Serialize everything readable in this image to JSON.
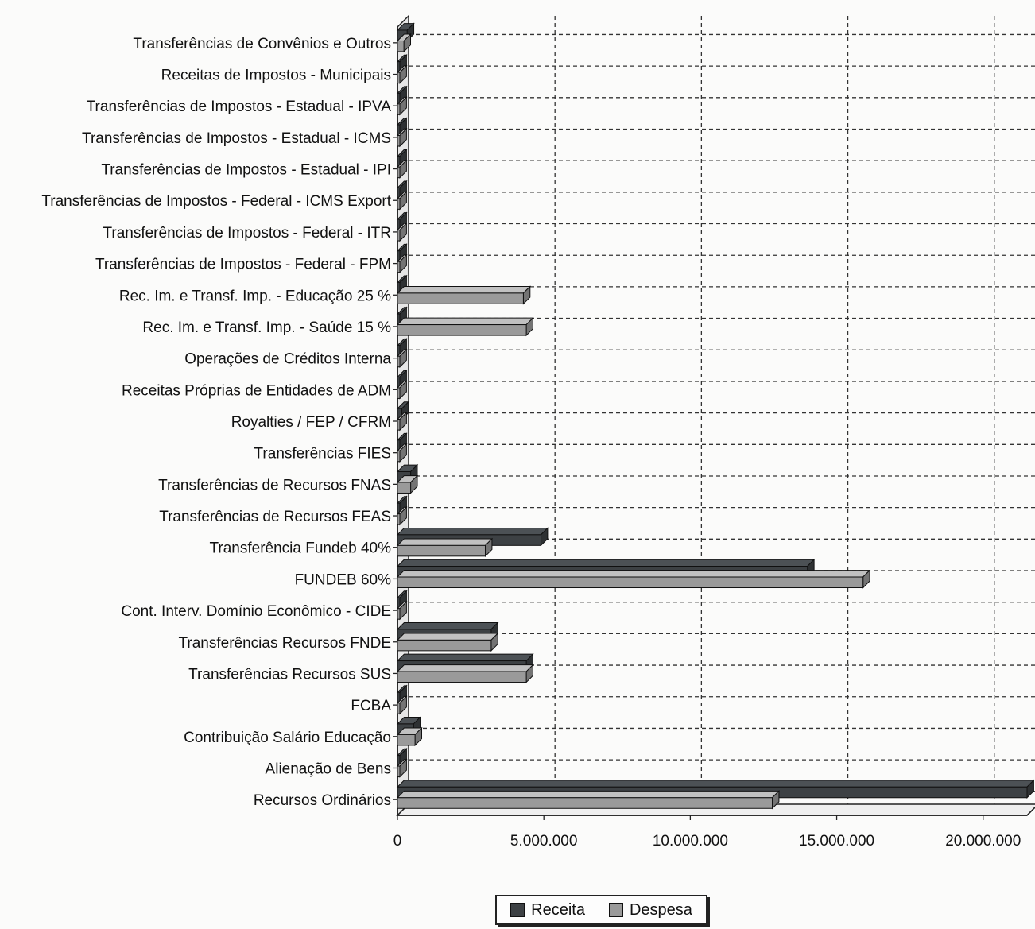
{
  "chart_data": {
    "type": "bar",
    "orientation": "horizontal",
    "title": "",
    "xlabel": "",
    "ylabel": "",
    "xlim": [
      0,
      21500000
    ],
    "x_ticks": [
      0,
      5000000,
      10000000,
      15000000,
      20000000
    ],
    "x_tick_labels": [
      "0",
      "5.000.000",
      "10.000.000",
      "15.000.000",
      "20.000.000"
    ],
    "grid": true,
    "legend_position": "bottom",
    "categories": [
      "Transferências de Convênios e Outros",
      "Receitas de Impostos - Municipais",
      "Transferências de Impostos - Estadual - IPVA",
      "Transferências de Impostos - Estadual - ICMS",
      "Transferências de Impostos - Estadual - IPI",
      "Transferências de Impostos - Federal - ICMS Export",
      "Transferências de Impostos - Federal - ITR",
      "Transferências de Impostos - Federal - FPM",
      "Rec. Im. e Transf. Imp.  - Educação 25 %",
      "Rec. Im. e Transf. Imp.  - Saúde 15 %",
      "Operações de Créditos Interna",
      "Receitas Próprias de Entidades de ADM",
      "Royalties / FEP / CFRM",
      "Transferências FIES",
      "Transferências de Recursos FNAS",
      "Transferências de Recursos FEAS",
      "Transferência Fundeb  40%",
      "FUNDEB 60%",
      "Cont. Interv. Domínio Econômico - CIDE",
      "Transferências Recursos FNDE",
      "Transferências Recursos SUS",
      "FCBA",
      "Contribuição Salário Educação",
      "Alienação de Bens",
      "Recursos Ordinários"
    ],
    "series": [
      {
        "name": "Receita",
        "color": "#3d4144",
        "values": [
          330000,
          0,
          0,
          0,
          0,
          0,
          0,
          0,
          0,
          0,
          0,
          0,
          150000,
          30000,
          450000,
          0,
          4900000,
          14000000,
          0,
          3200000,
          4400000,
          0,
          550000,
          0,
          21500000
        ]
      },
      {
        "name": "Despesa",
        "color": "#9a9a9a",
        "values": [
          220000,
          0,
          0,
          0,
          0,
          0,
          0,
          0,
          4300000,
          4400000,
          0,
          0,
          80000,
          0,
          450000,
          0,
          3000000,
          15900000,
          0,
          3200000,
          4400000,
          0,
          600000,
          0,
          12800000
        ]
      }
    ]
  }
}
